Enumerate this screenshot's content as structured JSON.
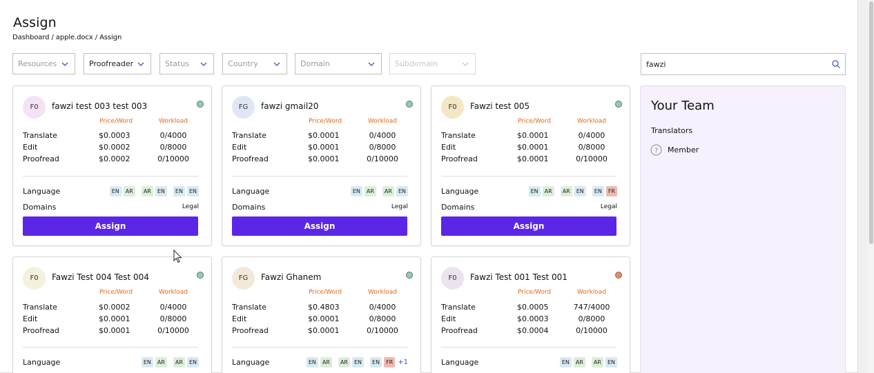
{
  "page": {
    "title": "Assign",
    "breadcrumb": [
      "Dashboard",
      "apple.docx",
      "Assign"
    ],
    "breadcrumb_sep": " / "
  },
  "filters": [
    {
      "label": "Resources",
      "state": "placeholder"
    },
    {
      "label": "Proofreader",
      "state": "selected"
    },
    {
      "label": "Status",
      "state": "placeholder"
    },
    {
      "label": "Country",
      "state": "placeholder"
    },
    {
      "label": "Domain",
      "state": "placeholder"
    },
    {
      "label": "Subdomain",
      "state": "disabled"
    }
  ],
  "search": {
    "value": "fawzi",
    "icon": "search-icon"
  },
  "labels": {
    "price_header": "Price/Word",
    "workload_header": "Workload",
    "translate": "Translate",
    "edit": "Edit",
    "proofread": "Proofread",
    "language": "Language",
    "domains": "Domains",
    "assign": "Assign"
  },
  "colors": {
    "accent": "#5b26e6",
    "header_orange": "#e06a1b",
    "status_green": "#8fcfb0",
    "status_orange": "#ef8a63"
  },
  "cards": [
    {
      "initials": "F0",
      "name": "fawzi test 003 test 003",
      "avatar_color": "#f3e3f5",
      "status": "#8fcfb0",
      "translate": {
        "price": "$0.0003",
        "workload": "0/4000"
      },
      "edit": {
        "price": "$0.0002",
        "workload": "0/8000"
      },
      "proofread": {
        "price": "$0.0002",
        "workload": "0/10000"
      },
      "languages": [
        [
          "EN",
          "AR"
        ],
        [
          "AR",
          "EN"
        ],
        [
          "EN",
          "EN"
        ]
      ],
      "more": "",
      "domain": "Legal"
    },
    {
      "initials": "FG",
      "name": "fawzi gmail20",
      "avatar_color": "#dfe6f5",
      "status": "#8fcfb0",
      "translate": {
        "price": "$0.0001",
        "workload": "0/4000"
      },
      "edit": {
        "price": "$0.0001",
        "workload": "0/8000"
      },
      "proofread": {
        "price": "$0.0001",
        "workload": "0/10000"
      },
      "languages": [
        [
          "EN",
          "AR"
        ],
        [
          "AR",
          "EN"
        ]
      ],
      "more": "",
      "domain": "Legal"
    },
    {
      "initials": "F0",
      "name": "Fawzi test 005",
      "avatar_color": "#f5e6c5",
      "status": "#8fcfb0",
      "translate": {
        "price": "$0.0001",
        "workload": "0/4000"
      },
      "edit": {
        "price": "$0.0001",
        "workload": "0/8000"
      },
      "proofread": {
        "price": "$0.0001",
        "workload": "0/10000"
      },
      "languages": [
        [
          "EN",
          "AR"
        ],
        [
          "AR",
          "EN"
        ],
        [
          "EN",
          "FR"
        ]
      ],
      "more": "",
      "domain": "Legal"
    },
    {
      "initials": "F0",
      "name": "Fawzi Test 004 Test 004",
      "avatar_color": "#f4f1dc",
      "status": "#8fcfb0",
      "translate": {
        "price": "$0.0002",
        "workload": "0/4000"
      },
      "edit": {
        "price": "$0.0001",
        "workload": "0/8000"
      },
      "proofread": {
        "price": "$0.0001",
        "workload": "0/10000"
      },
      "languages": [
        [
          "EN",
          "AR"
        ],
        [
          "AR",
          "EN"
        ]
      ],
      "more": ""
    },
    {
      "initials": "FG",
      "name": "Fawzi Ghanem",
      "avatar_color": "#f4e8da",
      "status": "#8fcfb0",
      "translate": {
        "price": "$0.4803",
        "workload": "0/4000"
      },
      "edit": {
        "price": "$0.0001",
        "workload": "0/8000"
      },
      "proofread": {
        "price": "$0.0001",
        "workload": "0/10000"
      },
      "languages": [
        [
          "EN",
          "AR"
        ],
        [
          "AR",
          "EN"
        ],
        [
          "EN",
          "FR"
        ]
      ],
      "more": "+1"
    },
    {
      "initials": "F0",
      "name": "Fawzi Test 001 Test 001",
      "avatar_color": "#ebe3f0",
      "status": "#ef8a63",
      "translate": {
        "price": "$0.0005",
        "workload": "747/4000"
      },
      "edit": {
        "price": "$0.0003",
        "workload": "0/8000"
      },
      "proofread": {
        "price": "$0.0004",
        "workload": "0/10000"
      },
      "languages": [
        [
          "EN",
          "AR"
        ],
        [
          "AR",
          "EN"
        ]
      ],
      "more": ""
    }
  ],
  "team": {
    "title": "Your Team",
    "section": "Translators",
    "member": "Member",
    "member_icon": "question-circle-icon"
  }
}
